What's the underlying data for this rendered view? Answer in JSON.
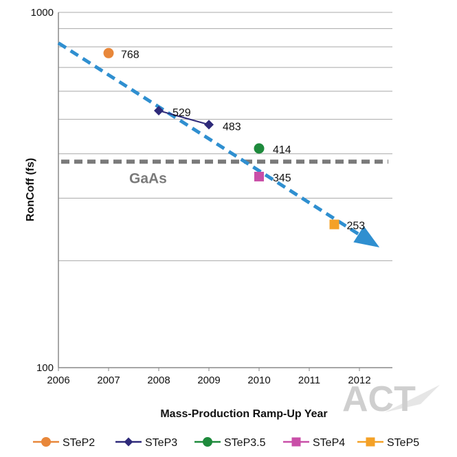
{
  "chart_data": {
    "type": "scatter",
    "title": "",
    "xlabel": "Mass-Production Ramp-Up Year",
    "ylabel": "RonCoff (fs)",
    "xlim": [
      2006,
      2012.7
    ],
    "ylim": [
      100,
      1000
    ],
    "y_scale": "log",
    "x_ticks": [
      "2006",
      "2007",
      "2008",
      "2009",
      "2010",
      "2011",
      "2012"
    ],
    "y_ticks": [
      "100",
      "1000"
    ],
    "grid": "horizontal",
    "legend_position": "bottom",
    "series": [
      {
        "name": "STeP2",
        "color": "#e8873a",
        "marker": "circle",
        "points": [
          {
            "x": 2007,
            "y": 768,
            "label": "768"
          }
        ]
      },
      {
        "name": "STeP3",
        "color": "#2e2a7a",
        "marker": "diamond",
        "points": [
          {
            "x": 2008,
            "y": 529,
            "label": "529"
          },
          {
            "x": 2009,
            "y": 483,
            "label": "483"
          }
        ]
      },
      {
        "name": "STeP3.5",
        "color": "#1e8a3c",
        "marker": "circle",
        "points": [
          {
            "x": 2010,
            "y": 414,
            "label": "414"
          }
        ]
      },
      {
        "name": "STeP4",
        "color": "#c94fa8",
        "marker": "square",
        "points": [
          {
            "x": 2010,
            "y": 345,
            "label": "345"
          }
        ]
      },
      {
        "name": "STeP5",
        "color": "#f4a127",
        "marker": "square",
        "points": [
          {
            "x": 2011.5,
            "y": 253,
            "label": "253"
          }
        ]
      }
    ],
    "trend": {
      "color": "#2f8fd0",
      "from": {
        "x": 2006,
        "y": 820
      },
      "to": {
        "x": 2012.4,
        "y": 218
      }
    },
    "reference": {
      "label": "GaAs",
      "y": 380,
      "color": "#7a7a7a"
    }
  },
  "watermark": {
    "text": "ACT",
    "color": "#cfcfcf"
  }
}
